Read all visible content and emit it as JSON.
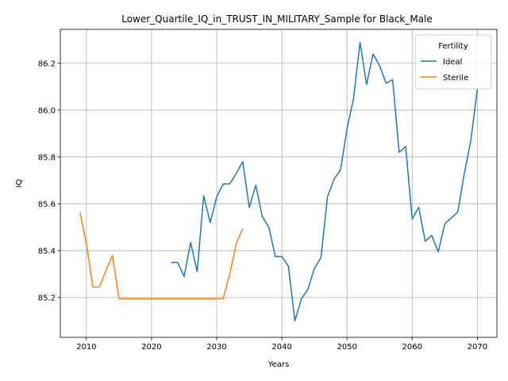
{
  "chart_data": {
    "type": "line",
    "title": "Lower_Quartile_IQ_in_TRUST_IN_MILITARY_Sample for Black_Male",
    "xlabel": "Years",
    "ylabel": "IQ",
    "xlim": [
      2006,
      2073
    ],
    "ylim": [
      85.03,
      86.345
    ],
    "xticks": [
      2010,
      2020,
      2030,
      2040,
      2050,
      2060,
      2070
    ],
    "yticks": [
      85.2,
      85.4,
      85.6,
      85.8,
      86.0,
      86.2
    ],
    "ytick_labels": [
      "85.2",
      "85.4",
      "85.6",
      "85.8",
      "86.0",
      "86.2"
    ],
    "grid": true,
    "legend": {
      "title": "Fertility",
      "placement": "top-right"
    },
    "series": [
      {
        "name": "Ideal",
        "color": "#1f77b4",
        "points": [
          [
            2023,
            85.35
          ],
          [
            2024,
            85.35
          ],
          [
            2025,
            85.29
          ],
          [
            2026,
            85.435
          ],
          [
            2027,
            85.31
          ],
          [
            2028,
            85.635
          ],
          [
            2029,
            85.52
          ],
          [
            2030,
            85.63
          ],
          [
            2031,
            85.685
          ],
          [
            2032,
            85.685
          ],
          [
            2033,
            85.73
          ],
          [
            2034,
            85.78
          ],
          [
            2035,
            85.585
          ],
          [
            2036,
            85.68
          ],
          [
            2037,
            85.545
          ],
          [
            2038,
            85.5
          ],
          [
            2039,
            85.375
          ],
          [
            2040,
            85.375
          ],
          [
            2041,
            85.335
          ],
          [
            2042,
            85.1
          ],
          [
            2043,
            85.195
          ],
          [
            2044,
            85.235
          ],
          [
            2045,
            85.325
          ],
          [
            2046,
            85.37
          ],
          [
            2047,
            85.63
          ],
          [
            2048,
            85.705
          ],
          [
            2049,
            85.745
          ],
          [
            2050,
            85.92
          ],
          [
            2051,
            86.05
          ],
          [
            2052,
            86.29
          ],
          [
            2053,
            86.11
          ],
          [
            2054,
            86.24
          ],
          [
            2055,
            86.19
          ],
          [
            2056,
            86.115
          ],
          [
            2057,
            86.13
          ],
          [
            2058,
            85.82
          ],
          [
            2059,
            85.845
          ],
          [
            2060,
            85.535
          ],
          [
            2061,
            85.585
          ],
          [
            2062,
            85.44
          ],
          [
            2063,
            85.465
          ],
          [
            2064,
            85.395
          ],
          [
            2065,
            85.515
          ],
          [
            2066,
            85.54
          ],
          [
            2067,
            85.565
          ],
          [
            2068,
            85.73
          ],
          [
            2069,
            85.87
          ],
          [
            2070,
            86.09
          ]
        ]
      },
      {
        "name": "Sterile",
        "color": "#ff7f0e",
        "points": [
          [
            2009,
            85.565
          ],
          [
            2010,
            85.43
          ],
          [
            2011,
            85.245
          ],
          [
            2012,
            85.245
          ],
          [
            2013,
            85.315
          ],
          [
            2014,
            85.38
          ],
          [
            2015,
            85.195
          ],
          [
            2016,
            85.195
          ],
          [
            2017,
            85.195
          ],
          [
            2018,
            85.195
          ],
          [
            2019,
            85.195
          ],
          [
            2020,
            85.195
          ],
          [
            2021,
            85.195
          ],
          [
            2022,
            85.195
          ],
          [
            2023,
            85.195
          ],
          [
            2024,
            85.195
          ],
          [
            2025,
            85.195
          ],
          [
            2026,
            85.195
          ],
          [
            2027,
            85.195
          ],
          [
            2028,
            85.195
          ],
          [
            2029,
            85.195
          ],
          [
            2030,
            85.195
          ],
          [
            2031,
            85.195
          ],
          [
            2032,
            85.3
          ],
          [
            2033,
            85.43
          ],
          [
            2034,
            85.495
          ]
        ]
      }
    ]
  }
}
